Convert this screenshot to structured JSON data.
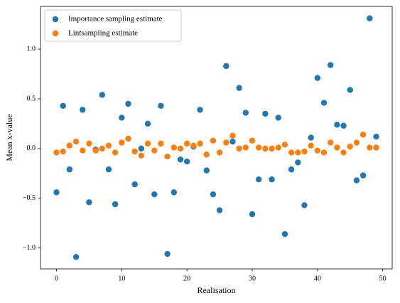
{
  "chart_data": {
    "type": "scatter",
    "xlabel": "Realisation",
    "ylabel": "Mean x-value",
    "xlim": [
      -2.45,
      51.45
    ],
    "ylim": [
      -1.21,
      1.43
    ],
    "xticks": [
      0,
      10,
      20,
      30,
      40,
      50
    ],
    "yticks": [
      {
        "value": -1.0,
        "label": "−1.0"
      },
      {
        "value": -0.5,
        "label": "−0.5"
      },
      {
        "value": 0.0,
        "label": "0.0"
      },
      {
        "value": 0.5,
        "label": "0.5"
      },
      {
        "value": 1.0,
        "label": "1.0"
      }
    ],
    "legend": "upper left",
    "x": [
      0,
      1,
      2,
      3,
      4,
      5,
      6,
      7,
      8,
      9,
      10,
      11,
      12,
      13,
      14,
      15,
      16,
      17,
      18,
      19,
      20,
      21,
      22,
      23,
      24,
      25,
      26,
      27,
      28,
      29,
      30,
      31,
      32,
      33,
      34,
      35,
      36,
      37,
      38,
      39,
      40,
      41,
      42,
      43,
      44,
      45,
      46,
      47,
      48,
      49
    ],
    "series": [
      {
        "name": "Importance sampling estimate",
        "color": "#1f77b4",
        "values": [
          -0.44,
          0.43,
          -0.21,
          -1.09,
          0.39,
          -0.54,
          -0.01,
          0.54,
          -0.21,
          -0.56,
          0.31,
          0.45,
          -0.36,
          0.0,
          0.25,
          -0.46,
          0.43,
          -1.06,
          -0.44,
          -0.11,
          -0.13,
          0.02,
          0.39,
          -0.22,
          -0.46,
          -0.62,
          0.83,
          0.07,
          0.61,
          0.36,
          -0.66,
          -0.31,
          0.35,
          -0.31,
          0.31,
          -0.86,
          -0.21,
          -0.14,
          -0.57,
          0.11,
          0.71,
          0.46,
          0.84,
          0.24,
          0.23,
          0.59,
          -0.32,
          -0.27,
          1.31,
          0.12
        ]
      },
      {
        "name": "Lintsampling estimate",
        "color": "#ff7f0e",
        "values": [
          -0.04,
          -0.03,
          0.03,
          0.07,
          -0.02,
          0.05,
          -0.02,
          0.0,
          0.03,
          -0.04,
          0.06,
          0.1,
          -0.03,
          -0.07,
          0.05,
          -0.02,
          0.05,
          -0.08,
          0.01,
          0.0,
          0.05,
          0.03,
          0.05,
          -0.06,
          0.08,
          -0.04,
          0.06,
          0.13,
          0.0,
          0.01,
          0.08,
          0.01,
          0.0,
          0.0,
          0.01,
          0.04,
          -0.04,
          -0.04,
          -0.03,
          0.03,
          -0.02,
          -0.04,
          0.06,
          0.01,
          -0.04,
          0.02,
          0.06,
          0.14,
          0.01,
          0.01
        ]
      }
    ]
  }
}
